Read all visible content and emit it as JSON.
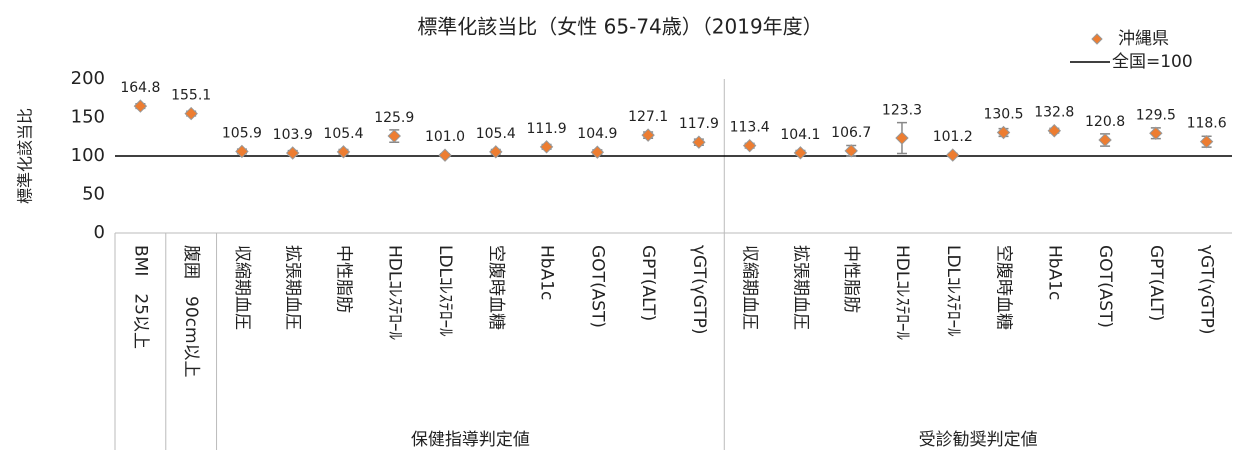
{
  "chart_data": {
    "type": "dot",
    "title": "標準化該当比（女性 65-74歳）（2019年度）",
    "y_label": "標準化該当比",
    "categories": [
      "BMI　25以上",
      "腹囲　90cm以上",
      "収縮期血圧",
      "拡張期血圧",
      "中性脂肪",
      "HDLｺﾚｽﾃﾛｰﾙ",
      "LDLｺﾚｽﾃﾛｰﾙ",
      "空腹時血糖",
      "HbA1c",
      "GOT(AST)",
      "GPT(ALT)",
      "γGT(γGTP)",
      "収縮期血圧",
      "拡張期血圧",
      "中性脂肪",
      "HDLｺﾚｽﾃﾛｰﾙ",
      "LDLｺﾚｽﾃﾛｰﾙ",
      "空腹時血糖",
      "HbA1c",
      "GOT(AST)",
      "GPT(ALT)",
      "γGT(γGTP)"
    ],
    "groups": [
      {
        "name": "保健指導判定値",
        "from": 2,
        "to": 11
      },
      {
        "name": "受診勧奨判定値",
        "from": 12,
        "to": 21
      }
    ],
    "series": [
      {
        "name": "沖縄県",
        "color": "#ed7d31",
        "values": [
          164.8,
          155.1,
          105.9,
          103.9,
          105.4,
          125.9,
          101.0,
          105.4,
          111.9,
          104.9,
          127.1,
          117.9,
          113.4,
          104.1,
          106.7,
          123.3,
          101.2,
          130.5,
          132.8,
          120.8,
          129.5,
          118.6
        ],
        "value_labels": [
          "164.8",
          "155.1",
          "105.9",
          "103.9",
          "105.4",
          "125.9",
          "101.0",
          "105.4",
          "111.9",
          "104.9",
          "127.1",
          "117.9",
          "113.4",
          "104.1",
          "106.7",
          "123.3",
          "101.2",
          "130.5",
          "132.8",
          "120.8",
          "129.5",
          "118.6"
        ],
        "errors": [
          3,
          3,
          3,
          3,
          3,
          8,
          2,
          3,
          3,
          3,
          4,
          4,
          3,
          3,
          7,
          20,
          2,
          5,
          3,
          8,
          7,
          7
        ]
      }
    ],
    "reference": {
      "name": "全国=100",
      "value": 100,
      "color": "#000000"
    },
    "ylim": [
      0,
      200
    ],
    "yticks": [
      0,
      50,
      100,
      150,
      200
    ],
    "legend": "top-right"
  }
}
